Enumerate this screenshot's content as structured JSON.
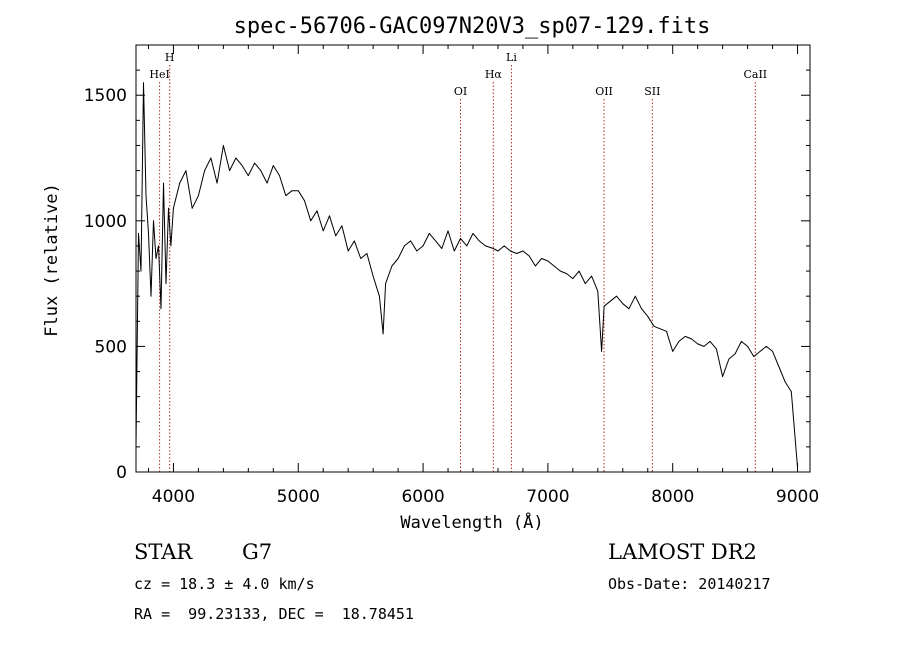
{
  "chart_data": {
    "type": "line",
    "title": "spec-56706-GAC097N20V3_sp07-129.fits",
    "xlabel": "Wavelength (Å)",
    "ylabel": "Flux (relative)",
    "xlim": [
      3700,
      9100
    ],
    "ylim": [
      0,
      1700
    ],
    "x_ticks": [
      4000,
      5000,
      6000,
      7000,
      8000,
      9000
    ],
    "y_ticks": [
      0,
      500,
      1000,
      1500
    ],
    "x_tick_labels": [
      "4000",
      "5000",
      "6000",
      "7000",
      "8000",
      "9000"
    ],
    "y_tick_labels": [
      "0",
      "500",
      "1000",
      "1500"
    ],
    "x_minor_step": 200,
    "y_minor_step": 100,
    "grid": false,
    "series": [
      {
        "x": [
          3700,
          3720,
          3740,
          3760,
          3780,
          3800,
          3820,
          3840,
          3860,
          3880,
          3900,
          3920,
          3940,
          3960,
          3980,
          4000,
          4050,
          4100,
          4150,
          4200,
          4250,
          4300,
          4350,
          4400,
          4450,
          4500,
          4550,
          4600,
          4650,
          4700,
          4750,
          4800,
          4850,
          4900,
          4950,
          5000,
          5050,
          5100,
          5150,
          5200,
          5250,
          5300,
          5350,
          5400,
          5450,
          5500,
          5550,
          5600,
          5650,
          5680,
          5700,
          5750,
          5800,
          5850,
          5900,
          5950,
          6000,
          6050,
          6100,
          6150,
          6200,
          6250,
          6300,
          6350,
          6400,
          6450,
          6500,
          6563,
          6600,
          6650,
          6700,
          6750,
          6800,
          6850,
          6900,
          6950,
          7000,
          7050,
          7100,
          7150,
          7200,
          7250,
          7300,
          7350,
          7400,
          7430,
          7450,
          7500,
          7550,
          7600,
          7650,
          7700,
          7750,
          7800,
          7850,
          7900,
          7950,
          8000,
          8050,
          8100,
          8150,
          8200,
          8250,
          8300,
          8350,
          8400,
          8450,
          8500,
          8550,
          8600,
          8650,
          8700,
          8750,
          8800,
          8850,
          8900,
          8950,
          9000
        ],
        "y": [
          100,
          950,
          800,
          1550,
          1100,
          950,
          700,
          1000,
          850,
          900,
          650,
          1150,
          750,
          1050,
          900,
          1050,
          1150,
          1200,
          1050,
          1100,
          1200,
          1250,
          1150,
          1300,
          1200,
          1250,
          1220,
          1180,
          1230,
          1200,
          1150,
          1220,
          1180,
          1100,
          1120,
          1120,
          1080,
          1000,
          1040,
          960,
          1020,
          940,
          980,
          880,
          920,
          850,
          870,
          780,
          700,
          550,
          750,
          820,
          850,
          900,
          920,
          880,
          900,
          950,
          920,
          890,
          960,
          880,
          930,
          900,
          950,
          920,
          900,
          890,
          880,
          900,
          880,
          870,
          880,
          860,
          820,
          850,
          840,
          820,
          800,
          790,
          770,
          800,
          750,
          780,
          720,
          480,
          660,
          680,
          700,
          670,
          650,
          700,
          650,
          620,
          580,
          570,
          560,
          480,
          520,
          540,
          530,
          510,
          500,
          520,
          490,
          380,
          450,
          470,
          520,
          500,
          460,
          480,
          500,
          480,
          420,
          360,
          320,
          20
        ]
      }
    ],
    "line_markers": [
      {
        "label": "HeI",
        "x": 3889,
        "level": 2
      },
      {
        "label": "H",
        "x": 3970,
        "level": 1
      },
      {
        "label": "OI",
        "x": 6300,
        "level": 3
      },
      {
        "label": "Hα",
        "x": 6563,
        "level": 2
      },
      {
        "label": "Li",
        "x": 6708,
        "level": 1
      },
      {
        "label": "OII",
        "x": 7450,
        "level": 3
      },
      {
        "label": "SII",
        "x": 7837,
        "level": 3
      },
      {
        "label": "CaII",
        "x": 8662,
        "level": 2
      }
    ],
    "colors": {
      "spectrum": "#000000",
      "marker": "#b03030",
      "axes": "#000000"
    }
  },
  "info": {
    "class_label": "STAR",
    "subclass": "G7",
    "survey": "LAMOST DR2",
    "redshift": "cz = 18.3 ± 4.0 km/s",
    "obs_date": "Obs-Date: 20140217",
    "coords": "RA =  99.23133, DEC =  18.78451"
  }
}
